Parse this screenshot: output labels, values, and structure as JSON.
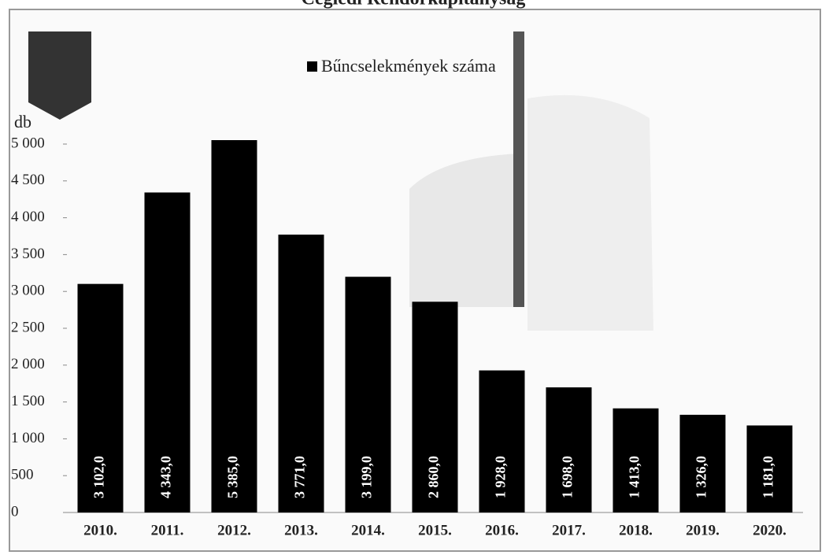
{
  "chart_data": {
    "type": "bar",
    "title": "Ceglédi Rendőrkapitányság",
    "y_label": "db",
    "categories": [
      "2010.",
      "2011.",
      "2012.",
      "2013.",
      "2014.",
      "2015.",
      "2016.",
      "2017.",
      "2018.",
      "2019.",
      "2020."
    ],
    "series": [
      {
        "name": "Bűncselekmények száma",
        "color": "#000000",
        "values": [
          3102,
          4343,
          5385,
          3771,
          3199,
          2860,
          1928,
          1698,
          1413,
          1326,
          1181
        ],
        "value_labels": [
          "3 102,0",
          "4 343,0",
          "5 385,0",
          "3 771,0",
          "3 199,0",
          "2 860,0",
          "1 928,0",
          "1 698,0",
          "1 413,0",
          "1 326,0",
          "1 181,0"
        ]
      }
    ],
    "ylim": [
      0,
      5000
    ],
    "yticks": [
      0,
      500,
      {
        "value": 1000,
        "label": "1 000"
      },
      {
        "value": 1500,
        "label": "1 500"
      },
      {
        "value": 2000,
        "label": "2 000"
      },
      {
        "value": 2500,
        "label": "2 500"
      },
      {
        "value": 3000,
        "label": "3 000"
      },
      {
        "value": 3500,
        "label": "3 500"
      },
      {
        "value": 4000,
        "label": "4 000"
      },
      {
        "value": 4500,
        "label": "4 500"
      },
      {
        "value": 5000,
        "label": "5 000"
      }
    ],
    "legend": "top"
  }
}
